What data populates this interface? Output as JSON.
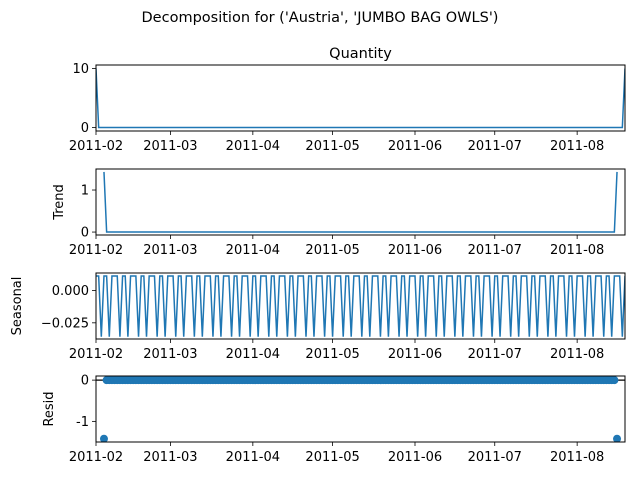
{
  "suptitle": "Decomposition for ('Austria', 'JUMBO BAG OWLS')",
  "colors": {
    "line": "#1f77b4",
    "axis": "#000000",
    "background": "#ffffff"
  },
  "chart_data": [
    {
      "type": "line",
      "title": "Quantity",
      "ylabel": "",
      "x_start": "2011-02-01",
      "x_end": "2011-08-19",
      "xlim": [
        "2011-02-01",
        "2011-08-19"
      ],
      "xticks": [
        "2011-02",
        "2011-03",
        "2011-04",
        "2011-05",
        "2011-06",
        "2011-07",
        "2011-08"
      ],
      "ylim": [
        -0.6,
        10.6
      ],
      "yticks": [
        0,
        10
      ],
      "series": [
        {
          "points": [
            [
              "2011-02-01",
              10
            ],
            [
              "2011-02-02",
              0
            ],
            [
              "2011-08-18",
              0
            ],
            [
              "2011-08-19",
              10
            ]
          ]
        }
      ]
    },
    {
      "type": "line",
      "title": "",
      "ylabel": "Trend",
      "xlim": [
        "2011-02-01",
        "2011-08-19"
      ],
      "xticks": [
        "2011-02",
        "2011-03",
        "2011-04",
        "2011-05",
        "2011-06",
        "2011-07",
        "2011-08"
      ],
      "ylim": [
        -0.07,
        1.5
      ],
      "yticks": [
        0,
        1
      ],
      "series": [
        {
          "points": [
            [
              "2011-02-04",
              1.43
            ],
            [
              "2011-02-05",
              0
            ],
            [
              "2011-08-15",
              0
            ],
            [
              "2011-08-16",
              1.43
            ]
          ]
        }
      ]
    },
    {
      "type": "line",
      "title": "",
      "ylabel": "Seasonal",
      "xlim": [
        "2011-02-01",
        "2011-08-19"
      ],
      "xticks": [
        "2011-02",
        "2011-03",
        "2011-04",
        "2011-05",
        "2011-06",
        "2011-07",
        "2011-08"
      ],
      "ylim": [
        -0.0375,
        0.0135
      ],
      "yticks": [
        0.0,
        -0.025
      ],
      "yticklabels": [
        "0.000",
        "−0.025"
      ],
      "pattern": {
        "start": "2011-02-01",
        "end": "2011-08-19",
        "period_days": 7,
        "values": [
          0.0112,
          0.0112,
          -0.0357,
          0.0112,
          0.0112,
          -0.0357,
          0.0112
        ]
      }
    },
    {
      "type": "scatter",
      "title": "",
      "ylabel": "Resid",
      "xlim": [
        "2011-02-01",
        "2011-08-19"
      ],
      "xticks": [
        "2011-02",
        "2011-03",
        "2011-04",
        "2011-05",
        "2011-06",
        "2011-07",
        "2011-08"
      ],
      "ylim": [
        -1.5,
        0.1
      ],
      "yticks": [
        0,
        -1
      ],
      "zero_line": true,
      "points": [
        [
          "2011-02-04",
          -1.42
        ],
        [
          "2011-08-16",
          -1.42
        ]
      ],
      "fill_range": {
        "start": "2011-02-05",
        "end": "2011-08-15",
        "value": 0
      }
    }
  ]
}
